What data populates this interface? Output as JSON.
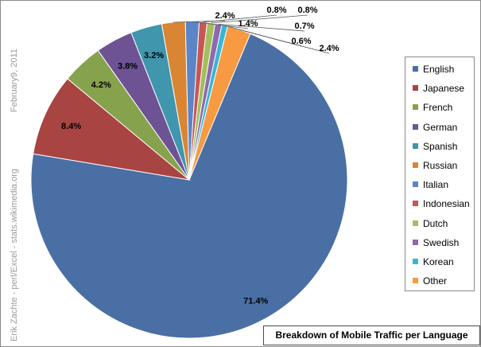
{
  "chart_data": {
    "type": "pie",
    "title": "Breakdown of  Mobile Traffic per Language",
    "credit_text": "Erik Zachte  -  perl/Excel  -  stats.wikimedia.org",
    "date_text": "February9, 2011",
    "legend_position": "right",
    "slices": [
      {
        "name": "English",
        "value": 71.4,
        "label": "71.4%",
        "color": "#4a6fa5"
      },
      {
        "name": "Japanese",
        "value": 8.4,
        "label": "8.4%",
        "color": "#a84442"
      },
      {
        "name": "French",
        "value": 4.2,
        "label": "4.2%",
        "color": "#87a24c"
      },
      {
        "name": "German",
        "value": 3.8,
        "label": "3.8%",
        "color": "#6e5394"
      },
      {
        "name": "Spanish",
        "value": 3.2,
        "label": "3.2%",
        "color": "#3f96ad"
      },
      {
        "name": "Russian",
        "value": 2.4,
        "label": "2.4%",
        "color": "#d98534"
      },
      {
        "name": "Italian",
        "value": 1.4,
        "label": "1.4%",
        "color": "#5b85c6"
      },
      {
        "name": "Indonesian",
        "value": 0.8,
        "label": "0.8%",
        "color": "#c85655"
      },
      {
        "name": "Dutch",
        "value": 0.8,
        "label": "0.8%",
        "color": "#a2bf5d"
      },
      {
        "name": "Swedish",
        "value": 0.7,
        "label": "0.7%",
        "color": "#8b6bad"
      },
      {
        "name": "Korean",
        "value": 0.6,
        "label": "0.6%",
        "color": "#38b6d6"
      },
      {
        "name": "Other",
        "value": 2.4,
        "label": "2.4%",
        "color": "#f79a42"
      }
    ]
  }
}
